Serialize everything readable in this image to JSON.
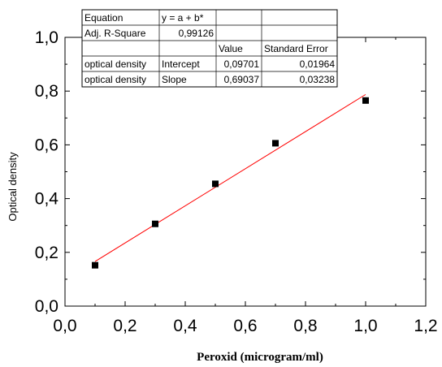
{
  "chart_data": {
    "type": "scatter",
    "xlabel": "Peroxid (microgram/ml)",
    "ylabel": "Optical density",
    "xlim": [
      0.0,
      1.2
    ],
    "ylim": [
      0.0,
      1.0
    ],
    "x_ticks": [
      "0,0",
      "0,2",
      "0,4",
      "0,6",
      "0,8",
      "1,0",
      "1,2"
    ],
    "y_ticks": [
      "0,0",
      "0,2",
      "0,4",
      "0,6",
      "0,8",
      "1,0"
    ],
    "x_tick_values": [
      0.0,
      0.2,
      0.4,
      0.6,
      0.8,
      1.0,
      1.2
    ],
    "y_tick_values": [
      0.0,
      0.2,
      0.4,
      0.6,
      0.8,
      1.0
    ],
    "grid": false,
    "points": [
      {
        "x": 0.1,
        "y": 0.152
      },
      {
        "x": 0.3,
        "y": 0.306
      },
      {
        "x": 0.5,
        "y": 0.455
      },
      {
        "x": 0.7,
        "y": 0.606
      },
      {
        "x": 1.0,
        "y": 0.765
      }
    ],
    "fit_line": {
      "intercept": 0.09701,
      "slope": 0.69037,
      "x_range": [
        0.1,
        1.0
      ],
      "color": "#ff0000"
    },
    "marker_color": "#000000",
    "stats_table": {
      "rows": [
        [
          "Equation",
          "y = a + b*",
          "",
          ""
        ],
        [
          "Adj. R-Square",
          "0,99126",
          "",
          ""
        ],
        [
          "",
          "",
          "Value",
          "Standard Error"
        ],
        [
          "optical density",
          "Intercept",
          "0,09701",
          "0,01964"
        ],
        [
          "optical density",
          "Slope",
          "0,69037",
          "0,03238"
        ]
      ]
    }
  }
}
